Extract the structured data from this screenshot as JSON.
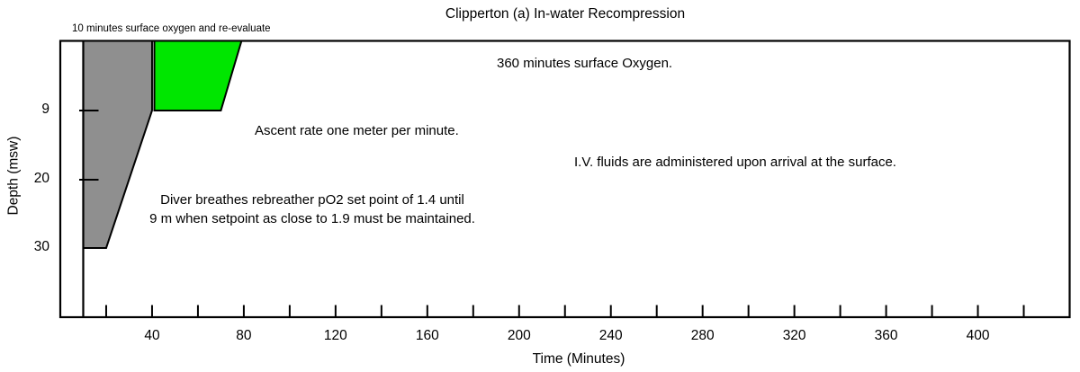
{
  "chart_data": {
    "type": "area",
    "title": "Clipperton (a) In-water Recompression",
    "xlabel": "Time (Minutes)",
    "ylabel": "Depth (msw)",
    "grid": false,
    "legend": false,
    "background_color": "#ffffff",
    "outline_color": "#000000",
    "x_axis": {
      "min": 0,
      "max": 440,
      "tick_step": 20,
      "first_tick": 20,
      "last_tick": 420,
      "labeled_ticks": [
        40,
        80,
        120,
        160,
        200,
        240,
        280,
        320,
        360,
        400
      ]
    },
    "y_axis": {
      "unit": "msw",
      "surface": 0,
      "ticks": [
        9,
        20
      ],
      "labeled_values": [
        9,
        20,
        30
      ]
    },
    "surface_interval_line_time": 10,
    "series": [
      {
        "name": "rebreather-po2-1.4-phase",
        "fill_color": "#8f8f8f",
        "profile_time_depth": [
          [
            10,
            0
          ],
          [
            40,
            0
          ],
          [
            40,
            9
          ],
          [
            20,
            30
          ],
          [
            10,
            30
          ]
        ]
      },
      {
        "name": "oxygen-po2-1.9-phase",
        "fill_color": "#00e600",
        "profile_time_depth": [
          [
            41,
            0
          ],
          [
            79,
            0
          ],
          [
            70,
            9
          ],
          [
            41,
            9
          ]
        ]
      }
    ],
    "annotations": [
      {
        "id": "surface-oxygen-before",
        "lines": [
          "10 minutes surface oxygen and re-evaluate"
        ],
        "x": 80,
        "y": 22,
        "align": "left",
        "font_px": 11.5
      },
      {
        "id": "surface-oxygen-after",
        "lines": [
          "360 minutes surface Oxygen."
        ],
        "x": 552,
        "y": 60,
        "align": "left",
        "font_px": 15
      },
      {
        "id": "ascent-rate",
        "lines": [
          "Ascent rate one meter per minute."
        ],
        "x": 283,
        "y": 135,
        "align": "left",
        "font_px": 15
      },
      {
        "id": "iv-fluids",
        "lines": [
          "I.V. fluids are administered upon arrival at the surface."
        ],
        "x": 638,
        "y": 170,
        "align": "left",
        "font_px": 15
      },
      {
        "id": "rebreather-setpoint",
        "lines": [
          "Diver breathes rebreather pO2 set point of 1.4 until",
          "9 m when setpoint as close to 1.9 must be maintained."
        ],
        "x": 347,
        "y": 212,
        "align": "center",
        "font_px": 15
      }
    ]
  }
}
